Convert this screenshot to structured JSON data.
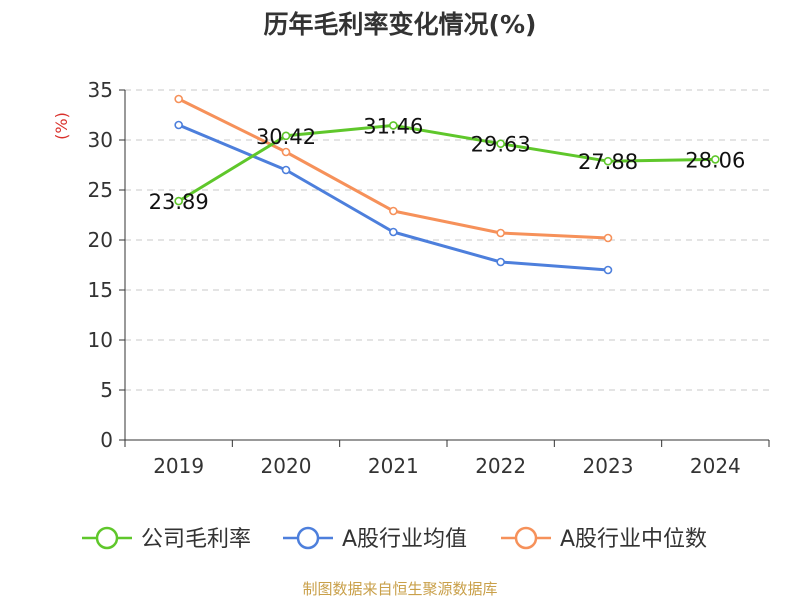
{
  "chart_data": {
    "type": "line",
    "title": "历年毛利率变化情况(%)",
    "ylabel": "(%)",
    "xlabel": "",
    "categories": [
      "2019",
      "2020",
      "2021",
      "2022",
      "2023",
      "2024"
    ],
    "ylim": [
      0,
      35
    ],
    "yticks": [
      0,
      5,
      10,
      15,
      20,
      25,
      30,
      35
    ],
    "grid": true,
    "legend_position": "bottom",
    "series": [
      {
        "name": "公司毛利率",
        "color": "#5fc72b",
        "values": [
          23.89,
          30.42,
          31.46,
          29.63,
          27.88,
          28.06
        ],
        "data_labels": [
          "23.89",
          "30.42",
          "31.46",
          "29.63",
          "27.88",
          "28.06"
        ]
      },
      {
        "name": "A股行业均值",
        "color": "#4d7fdc",
        "values": [
          31.5,
          27.0,
          20.8,
          17.8,
          17.0,
          null
        ]
      },
      {
        "name": "A股行业中位数",
        "color": "#f6915a",
        "values": [
          34.1,
          28.8,
          22.9,
          20.7,
          20.2,
          null
        ]
      }
    ]
  },
  "footer": {
    "source": "制图数据来自恒生聚源数据库"
  }
}
